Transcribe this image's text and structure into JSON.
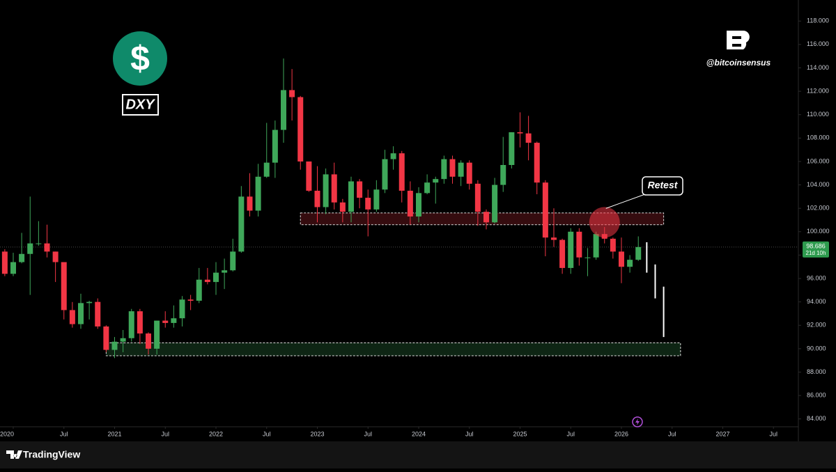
{
  "chart_data": {
    "type": "candlestick",
    "x": [
      "2019-12",
      "2020-01",
      "2020-02",
      "2020-03",
      "2020-04",
      "2020-05",
      "2020-06",
      "2020-07",
      "2020-08",
      "2020-09",
      "2020-10",
      "2020-11",
      "2020-12",
      "2021-01",
      "2021-02",
      "2021-03",
      "2021-04",
      "2021-05",
      "2021-06",
      "2021-07",
      "2021-08",
      "2021-09",
      "2021-10",
      "2021-11",
      "2021-12",
      "2022-01",
      "2022-02",
      "2022-03",
      "2022-04",
      "2022-05",
      "2022-06",
      "2022-07",
      "2022-08",
      "2022-09",
      "2022-10",
      "2022-11",
      "2022-12",
      "2023-01",
      "2023-02",
      "2023-03",
      "2023-04",
      "2023-05",
      "2023-06",
      "2023-07",
      "2023-08",
      "2023-09",
      "2023-10",
      "2023-11",
      "2023-12",
      "2024-01",
      "2024-02",
      "2024-03",
      "2024-04",
      "2024-05",
      "2024-06",
      "2024-07",
      "2024-08",
      "2024-09",
      "2024-10",
      "2024-11",
      "2024-12",
      "2025-01",
      "2025-02",
      "2025-03",
      "2025-04",
      "2025-05",
      "2025-06",
      "2025-07",
      "2025-08",
      "2025-09",
      "2025-10",
      "2025-11",
      "2025-12",
      "2026-01",
      "2026-02",
      "2026-03"
    ],
    "open": [
      98.3,
      96.4,
      97.4,
      98.1,
      99.0,
      99.0,
      98.3,
      97.4,
      93.3,
      92.1,
      93.9,
      94.0,
      91.9,
      89.9,
      90.6,
      90.9,
      93.2,
      91.3,
      90.0,
      92.4,
      92.2,
      92.6,
      94.2,
      94.1,
      95.9,
      95.7,
      96.5,
      96.7,
      98.3,
      103.0,
      101.8,
      104.7,
      105.9,
      108.7,
      112.1,
      111.5,
      106.0,
      103.5,
      102.1,
      104.9,
      102.5,
      101.7,
      104.3,
      102.9,
      101.9,
      103.6,
      106.2,
      106.7,
      103.5,
      101.3,
      103.3,
      104.2,
      104.5,
      106.2,
      104.7,
      105.9,
      104.1,
      101.7,
      100.8,
      104.0,
      105.7,
      108.5,
      108.4,
      107.6,
      104.2,
      99.5,
      99.3,
      96.9,
      100.0,
      97.8,
      97.8,
      99.8,
      99.4,
      98.3,
      97.0,
      97.6
    ],
    "high": [
      98.5,
      98.2,
      99.9,
      103.0,
      100.9,
      100.6,
      98.3,
      97.4,
      93.99,
      94.7,
      94.1,
      94.3,
      92.0,
      91.0,
      91.6,
      93.4,
      93.4,
      91.4,
      92.4,
      93.2,
      93.7,
      94.5,
      94.6,
      96.9,
      96.9,
      97.4,
      97.7,
      99.4,
      103.9,
      105.0,
      105.8,
      109.3,
      109.5,
      114.8,
      113.9,
      111.6,
      106.0,
      105.6,
      105.4,
      105.9,
      102.8,
      104.7,
      104.5,
      103.6,
      104.4,
      107.0,
      107.3,
      106.9,
      104.3,
      103.8,
      104.9,
      104.7,
      106.5,
      106.5,
      106.1,
      106.1,
      104.4,
      101.9,
      104.6,
      108.1,
      108.5,
      110.2,
      109.9,
      107.7,
      104.4,
      102.0,
      99.4,
      100.3,
      100.3,
      98.6,
      100.0,
      100.4,
      99.5,
      99.5,
      98.0,
      99.6
    ],
    "low": [
      96.2,
      96.2,
      97.3,
      94.6,
      98.8,
      97.8,
      95.7,
      92.5,
      91.8,
      91.7,
      92.5,
      91.7,
      89.7,
      89.2,
      89.7,
      90.6,
      90.4,
      89.5,
      89.5,
      91.8,
      91.8,
      91.9,
      93.3,
      93.9,
      95.5,
      94.6,
      95.1,
      96.6,
      98.2,
      101.3,
      101.3,
      104.6,
      104.6,
      107.6,
      109.5,
      105.3,
      103.4,
      100.8,
      101.5,
      101.9,
      100.8,
      100.8,
      102.0,
      99.6,
      101.7,
      103.3,
      105.3,
      102.5,
      100.6,
      100.8,
      103.2,
      102.4,
      104.1,
      104.1,
      103.9,
      103.6,
      100.5,
      100.2,
      100.7,
      103.4,
      105.4,
      107.2,
      106.1,
      103.2,
      97.9,
      98.7,
      96.4,
      96.4,
      97.1,
      96.2,
      97.6,
      99.0,
      97.7,
      95.6,
      96.5,
      97.5
    ],
    "close": [
      96.4,
      97.4,
      98.1,
      99.0,
      99.0,
      98.3,
      97.4,
      93.3,
      92.1,
      93.9,
      94.0,
      91.9,
      89.9,
      90.6,
      90.9,
      93.2,
      91.3,
      90.0,
      92.4,
      92.2,
      92.6,
      94.2,
      94.1,
      95.9,
      95.7,
      96.5,
      96.7,
      98.3,
      103.0,
      101.8,
      104.7,
      105.9,
      108.7,
      112.1,
      111.5,
      106.0,
      103.5,
      102.1,
      104.9,
      102.5,
      101.7,
      104.3,
      102.9,
      101.9,
      103.6,
      106.2,
      106.7,
      103.5,
      101.3,
      103.3,
      104.2,
      104.5,
      106.2,
      104.7,
      105.9,
      104.1,
      101.7,
      100.8,
      104.0,
      105.7,
      108.5,
      108.4,
      107.6,
      104.2,
      99.5,
      99.3,
      96.9,
      100.0,
      97.8,
      97.8,
      99.8,
      99.4,
      98.3,
      97.0,
      97.6,
      98.686
    ],
    "up_color": "#3fa85a",
    "down_color": "#f23645",
    "xlim": [
      "2019-11",
      "2027-10"
    ],
    "xticks": [
      {
        "value": "2020-01",
        "label": "2020"
      },
      {
        "value": "2020-07",
        "label": "Jul"
      },
      {
        "value": "2021-01",
        "label": "2021"
      },
      {
        "value": "2021-07",
        "label": "Jul"
      },
      {
        "value": "2022-01",
        "label": "2022"
      },
      {
        "value": "2022-07",
        "label": "Jul"
      },
      {
        "value": "2023-01",
        "label": "2023"
      },
      {
        "value": "2023-07",
        "label": "Jul"
      },
      {
        "value": "2024-01",
        "label": "2024"
      },
      {
        "value": "2024-07",
        "label": "Jul"
      },
      {
        "value": "2025-01",
        "label": "2025"
      },
      {
        "value": "2025-07",
        "label": "Jul"
      },
      {
        "value": "2026-01",
        "label": "2026"
      },
      {
        "value": "2026-07",
        "label": "Jul"
      },
      {
        "value": "2027-01",
        "label": "2027"
      },
      {
        "value": "2027-07",
        "label": "Jul"
      }
    ],
    "ylim": [
      82.2,
      119.8
    ],
    "yticks": [
      {
        "value": 84,
        "label": "84.000"
      },
      {
        "value": 86,
        "label": "86.000"
      },
      {
        "value": 88,
        "label": "88.000"
      },
      {
        "value": 90,
        "label": "90.000"
      },
      {
        "value": 92,
        "label": "92.000"
      },
      {
        "value": 94,
        "label": "94.000"
      },
      {
        "value": 96,
        "label": "96.000"
      },
      {
        "value": 98,
        "label": "98.000"
      },
      {
        "value": 100,
        "label": "100.000"
      },
      {
        "value": 102,
        "label": "102.000"
      },
      {
        "value": 104,
        "label": "104.000"
      },
      {
        "value": 106,
        "label": "106.000"
      },
      {
        "value": 108,
        "label": "108.000"
      },
      {
        "value": 110,
        "label": "110.000"
      },
      {
        "value": 112,
        "label": "112.000"
      },
      {
        "value": 114,
        "label": "114.000"
      },
      {
        "value": 116,
        "label": "116.000"
      },
      {
        "value": 118,
        "label": "118.000"
      }
    ],
    "grid": false,
    "last_price": 98.686,
    "countdown": "21d 10h",
    "zones": [
      {
        "from": "2022-11",
        "to": "2026-06",
        "low": 100.6,
        "high": 101.6,
        "color": "#f23645"
      },
      {
        "from": "2020-12",
        "to": "2026-08",
        "low": 89.4,
        "high": 90.5,
        "color": "#3fa85a"
      }
    ],
    "projection": [
      {
        "x": "2026-04",
        "from": 99.1,
        "to": 96.5
      },
      {
        "x": "2026-05",
        "from": 97.2,
        "to": 94.3
      },
      {
        "x": "2026-06",
        "from": 95.3,
        "to": 91.0
      }
    ],
    "annotation": {
      "text": "Retest",
      "x": "2025-11",
      "y": 100.8
    }
  },
  "branding": {
    "symbol": "$",
    "ticker": "DXY",
    "handle": "@bitcoinsensus",
    "watermark": "TradingView"
  }
}
